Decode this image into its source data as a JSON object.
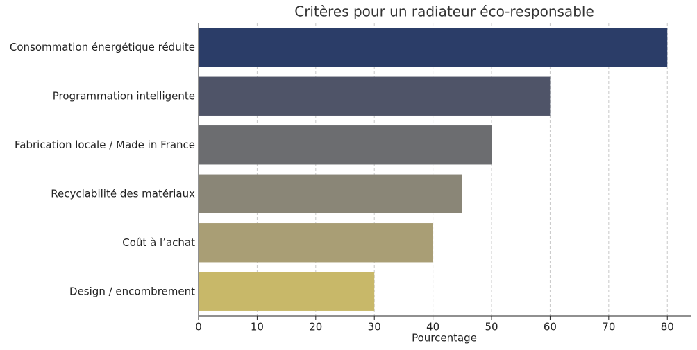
{
  "chart_data": {
    "type": "bar",
    "orientation": "horizontal",
    "title": "Critères pour un radiateur éco-responsable",
    "x_label": "Pourcentage",
    "categories": [
      "Consommation énergétique réduite",
      "Programmation intelligente",
      "Fabrication locale / Made in France",
      "Recyclabilité des matériaux",
      "Coût à l’achat",
      "Design / encombrement"
    ],
    "values": [
      80,
      60,
      50,
      45,
      40,
      30
    ],
    "colors": [
      "#2b3d68",
      "#4f5468",
      "#6c6d70",
      "#8a8677",
      "#a99e75",
      "#c8b869"
    ],
    "xlim": [
      0,
      84
    ],
    "xticks": [
      0,
      10,
      20,
      30,
      40,
      50,
      60,
      70,
      80
    ],
    "grid": true
  }
}
